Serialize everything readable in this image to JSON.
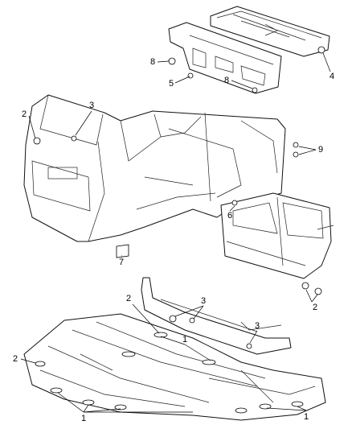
{
  "callouts": [
    {
      "label": "8"
    },
    {
      "label": "5"
    },
    {
      "label": "8"
    },
    {
      "label": "4"
    },
    {
      "label": "2"
    },
    {
      "label": "3"
    },
    {
      "label": "9"
    },
    {
      "label": "6"
    },
    {
      "label": "7"
    },
    {
      "label": "2"
    },
    {
      "label": "2"
    },
    {
      "label": "3"
    },
    {
      "label": "3"
    },
    {
      "label": "1"
    },
    {
      "label": "2"
    },
    {
      "label": "1"
    },
    {
      "label": "1"
    }
  ]
}
